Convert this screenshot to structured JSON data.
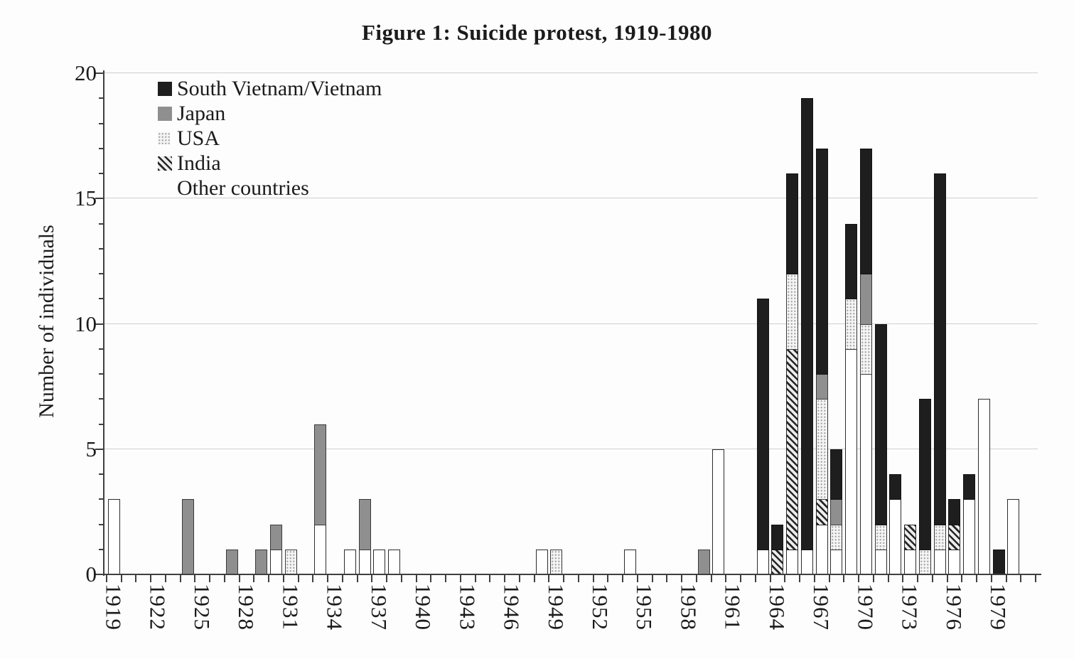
{
  "title": "Figure 1: Suicide protest, 1919-1980",
  "y_axis": {
    "label": "Number of individuals",
    "tick_values": [
      0,
      5,
      10,
      15,
      20
    ],
    "minor_tick_step": 1,
    "max": 20,
    "gridlines_at": [
      5,
      10,
      15,
      20
    ]
  },
  "x_axis": {
    "first_year": 1919,
    "last_year": 1980,
    "label_step": 3,
    "labels": [
      "1919",
      "1922",
      "1925",
      "1928",
      "1931",
      "1934",
      "1937",
      "1940",
      "1943",
      "1946",
      "1949",
      "1952",
      "1955",
      "1958",
      "1961",
      "1964",
      "1967",
      "1970",
      "1973",
      "1976",
      "1979"
    ]
  },
  "legend": {
    "items": [
      {
        "label": "South Vietnam/Vietnam",
        "series": "vietnam",
        "swatch": "solid-black"
      },
      {
        "label": "Japan",
        "series": "japan",
        "swatch": "solid-gray"
      },
      {
        "label": "USA",
        "series": "usa",
        "swatch": "light-dotted"
      },
      {
        "label": "India",
        "series": "india",
        "swatch": "diagonal-hatch"
      },
      {
        "label": "Other countries",
        "series": "other",
        "swatch": "white-invisible"
      }
    ]
  },
  "colors": {
    "vietnam": "#1e1e1e",
    "japan": "#8f8f8f",
    "usa_base": "#f5f5f5",
    "usa_dot": "#a8a8a8",
    "india_stripe": "#262626",
    "other": "#ffffff",
    "axis": "#3f3f3f",
    "grid": "#cfcfcf"
  },
  "chart_data": {
    "type": "bar",
    "stacked": true,
    "title": "Figure 1: Suicide protest, 1919-1980",
    "xlabel": "",
    "ylabel": "Number of individuals",
    "ylim": [
      0,
      20
    ],
    "x_range_years": [
      1919,
      1980
    ],
    "stack_order_bottom_to_top": [
      "other",
      "india",
      "usa",
      "japan",
      "vietnam"
    ],
    "series_full_names": {
      "vietnam": "South Vietnam/Vietnam",
      "japan": "Japan",
      "usa": "USA",
      "india": "India",
      "other": "Other countries"
    },
    "bars": [
      {
        "year": 1919,
        "other": 3
      },
      {
        "year": 1924,
        "japan": 3
      },
      {
        "year": 1927,
        "japan": 1
      },
      {
        "year": 1929,
        "japan": 1
      },
      {
        "year": 1930,
        "other": 1,
        "japan": 1
      },
      {
        "year": 1931,
        "usa": 1
      },
      {
        "year": 1933,
        "other": 2,
        "japan": 4
      },
      {
        "year": 1935,
        "other": 1
      },
      {
        "year": 1936,
        "other": 1,
        "japan": 2
      },
      {
        "year": 1937,
        "other": 1
      },
      {
        "year": 1938,
        "other": 1
      },
      {
        "year": 1948,
        "other": 1
      },
      {
        "year": 1949,
        "usa": 1
      },
      {
        "year": 1954,
        "other": 1
      },
      {
        "year": 1959,
        "japan": 1
      },
      {
        "year": 1960,
        "other": 5
      },
      {
        "year": 1963,
        "other": 1,
        "vietnam": 10
      },
      {
        "year": 1964,
        "india": 1,
        "vietnam": 1
      },
      {
        "year": 1965,
        "other": 1,
        "india": 8,
        "usa": 3,
        "vietnam": 4
      },
      {
        "year": 1966,
        "other": 1,
        "vietnam": 18
      },
      {
        "year": 1967,
        "other": 2,
        "india": 1,
        "usa": 4,
        "japan": 1,
        "vietnam": 9
      },
      {
        "year": 1968,
        "other": 1,
        "usa": 1,
        "japan": 1,
        "vietnam": 2
      },
      {
        "year": 1969,
        "other": 9,
        "usa": 2,
        "vietnam": 3
      },
      {
        "year": 1970,
        "other": 8,
        "usa": 2,
        "japan": 2,
        "vietnam": 5
      },
      {
        "year": 1971,
        "other": 1,
        "usa": 1,
        "vietnam": 8
      },
      {
        "year": 1972,
        "other": 3,
        "vietnam": 1
      },
      {
        "year": 1973,
        "other": 1,
        "india": 1
      },
      {
        "year": 1974,
        "usa": 1,
        "vietnam": 6
      },
      {
        "year": 1975,
        "other": 1,
        "usa": 1,
        "vietnam": 14
      },
      {
        "year": 1976,
        "other": 1,
        "india": 1,
        "vietnam": 1
      },
      {
        "year": 1977,
        "other": 3,
        "vietnam": 1
      },
      {
        "year": 1978,
        "other": 7
      },
      {
        "year": 1979,
        "vietnam": 1
      },
      {
        "year": 1980,
        "other": 3
      }
    ]
  }
}
